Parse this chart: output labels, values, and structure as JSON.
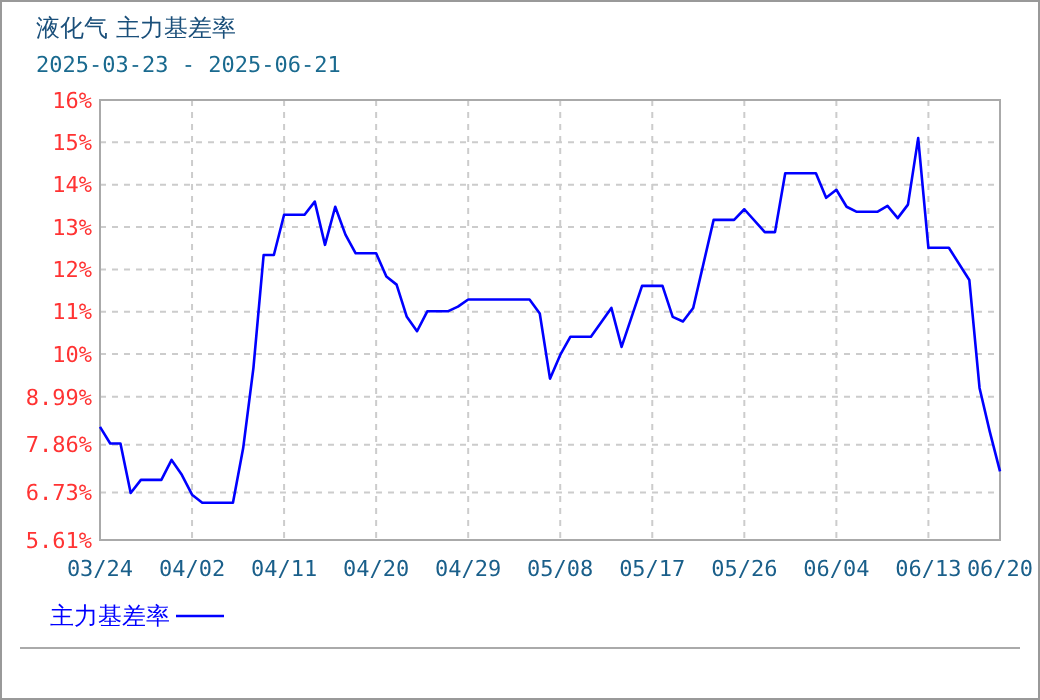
{
  "chart_data": {
    "type": "line",
    "title": "液化气 主力基差率",
    "subtitle": "2025-03-23 - 2025-06-21",
    "x": [
      "2025-03-24",
      "2025-03-25",
      "2025-03-26",
      "2025-03-27",
      "2025-03-28",
      "2025-03-30",
      "2025-03-31",
      "2025-04-01",
      "2025-04-02",
      "2025-04-03",
      "2025-04-06",
      "2025-04-07",
      "2025-04-08",
      "2025-04-09",
      "2025-04-10",
      "2025-04-11",
      "2025-04-13",
      "2025-04-14",
      "2025-04-15",
      "2025-04-16",
      "2025-04-17",
      "2025-04-18",
      "2025-04-20",
      "2025-04-21",
      "2025-04-22",
      "2025-04-23",
      "2025-04-24",
      "2025-04-25",
      "2025-04-27",
      "2025-04-28",
      "2025-04-29",
      "2025-05-05",
      "2025-05-06",
      "2025-05-07",
      "2025-05-08",
      "2025-05-09",
      "2025-05-11",
      "2025-05-13",
      "2025-05-14",
      "2025-05-16",
      "2025-05-18",
      "2025-05-19",
      "2025-05-20",
      "2025-05-21",
      "2025-05-23",
      "2025-05-25",
      "2025-05-26",
      "2025-05-28",
      "2025-05-29",
      "2025-05-30",
      "2025-06-02",
      "2025-06-03",
      "2025-06-04",
      "2025-06-05",
      "2025-06-06",
      "2025-06-08",
      "2025-06-09",
      "2025-06-10",
      "2025-06-11",
      "2025-06-12",
      "2025-06-13",
      "2025-06-15",
      "2025-06-17",
      "2025-06-18",
      "2025-06-19",
      "2025-06-20"
    ],
    "series": [
      {
        "name": "主力基差率",
        "color": "#0000ff",
        "values": [
          8.28,
          7.89,
          7.89,
          6.72,
          7.03,
          7.03,
          7.5,
          7.15,
          6.68,
          6.49,
          6.49,
          7.78,
          9.67,
          12.34,
          12.34,
          13.29,
          13.29,
          13.6,
          12.58,
          13.48,
          12.82,
          12.38,
          12.38,
          11.83,
          11.64,
          10.88,
          10.54,
          11.01,
          11.01,
          11.12,
          11.29,
          11.29,
          10.96,
          9.42,
          9.98,
          10.41,
          10.41,
          11.09,
          10.17,
          11.61,
          11.61,
          10.88,
          10.77,
          11.09,
          13.17,
          13.17,
          13.42,
          12.88,
          12.88,
          14.27,
          14.27,
          13.69,
          13.88,
          13.48,
          13.36,
          13.36,
          13.5,
          13.21,
          13.53,
          15.1,
          12.51,
          12.51,
          11.75,
          9.2,
          8.17,
          7.23
        ]
      }
    ],
    "xlim": [
      "2025-03-24",
      "2025-06-20"
    ],
    "xticks": [
      {
        "value": "2025-03-24",
        "label": "03/24"
      },
      {
        "value": "2025-04-02",
        "label": "04/02"
      },
      {
        "value": "2025-04-11",
        "label": "04/11"
      },
      {
        "value": "2025-04-20",
        "label": "04/20"
      },
      {
        "value": "2025-04-29",
        "label": "04/29"
      },
      {
        "value": "2025-05-08",
        "label": "05/08"
      },
      {
        "value": "2025-05-17",
        "label": "05/17"
      },
      {
        "value": "2025-05-26",
        "label": "05/26"
      },
      {
        "value": "2025-06-04",
        "label": "06/04"
      },
      {
        "value": "2025-06-13",
        "label": "06/13"
      },
      {
        "value": "2025-06-20",
        "label": "06/20"
      }
    ],
    "ylim": [
      5.61,
      16
    ],
    "yticks": [
      {
        "value": 5.61,
        "label": "5.61%"
      },
      {
        "value": 6.73,
        "label": "6.73%"
      },
      {
        "value": 7.86,
        "label": "7.86%"
      },
      {
        "value": 8.99,
        "label": "8.99%"
      },
      {
        "value": 10,
        "label": "10%"
      },
      {
        "value": 11,
        "label": "11%"
      },
      {
        "value": 12,
        "label": "12%"
      },
      {
        "value": 13,
        "label": "13%"
      },
      {
        "value": 14,
        "label": "14%"
      },
      {
        "value": 15,
        "label": "15%"
      },
      {
        "value": 16,
        "label": "16%"
      }
    ],
    "grid": true,
    "legend": "bottom",
    "marker": "none",
    "line_style": "solid"
  }
}
